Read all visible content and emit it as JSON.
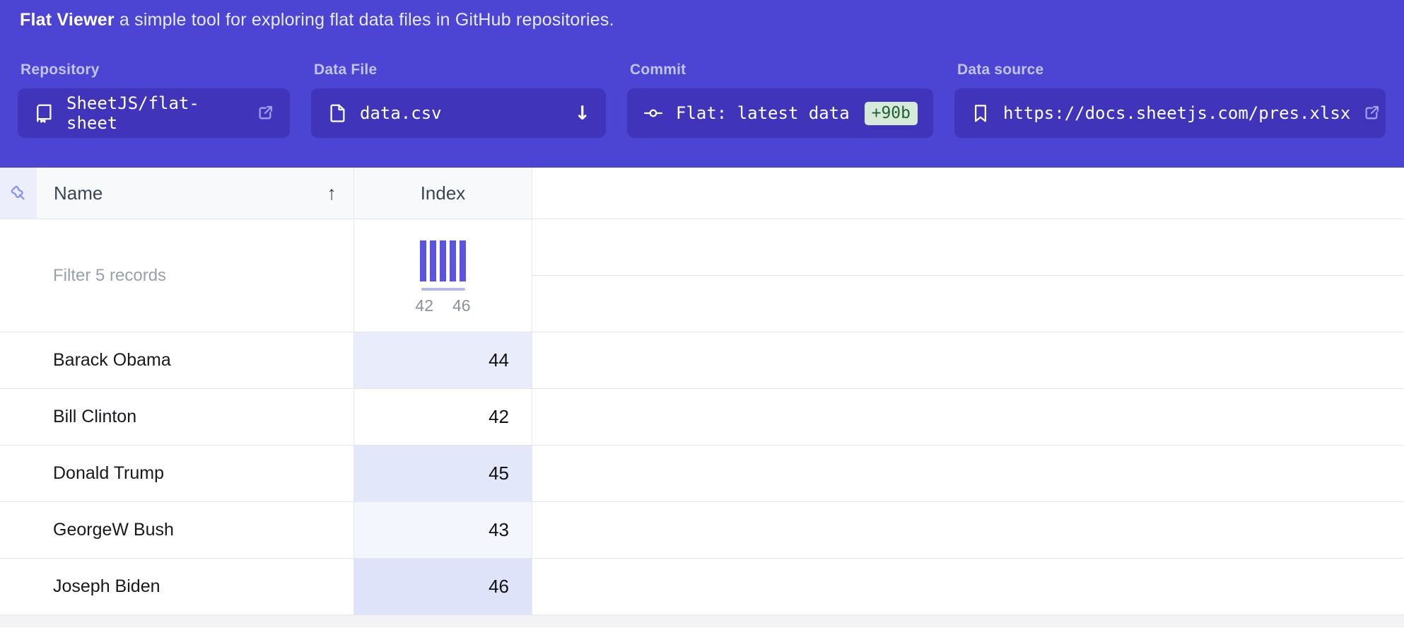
{
  "banner": {
    "bg_color": "#4c45d4",
    "button_bg_color": "#4034ba",
    "title": {
      "bold": "Flat Viewer",
      "rest": "a simple tool for exploring flat data files in GitHub repositories."
    },
    "repository": {
      "label": "Repository",
      "value": "SheetJS/flat-sheet"
    },
    "data_file": {
      "label": "Data File",
      "value": "data.csv",
      "download_indicator": "↓"
    },
    "commit": {
      "label": "Commit",
      "value": "Flat: latest data",
      "badge": "+90b",
      "badge_bg": "#d5ead8",
      "badge_text_color": "#226038"
    },
    "data_source": {
      "label": "Data source",
      "value": "https://docs.sheetjs.com/pres.xlsx"
    }
  },
  "table": {
    "columns": {
      "name": {
        "label": "Name",
        "sort_indicator": "↑"
      },
      "index": {
        "label": "Index"
      }
    },
    "filter_placeholder": "Filter 5 records",
    "record_count": "5",
    "histogram": {
      "type": "bar",
      "bins": [
        "42",
        "43",
        "44",
        "45",
        "46"
      ],
      "values": [
        1,
        1,
        1,
        1,
        1
      ],
      "min_label": "42",
      "max_label": "46",
      "bar_color": "#5a54e0"
    },
    "rows": [
      {
        "name": "Barack Obama",
        "index": "44",
        "index_bg": "#e9ecfb"
      },
      {
        "name": "Bill Clinton",
        "index": "42",
        "index_bg": "#ffffff"
      },
      {
        "name": "Donald Trump",
        "index": "45",
        "index_bg": "#e3e7fa"
      },
      {
        "name": "GeorgeW Bush",
        "index": "43",
        "index_bg": "#f4f6fd"
      },
      {
        "name": "Joseph Biden",
        "index": "46",
        "index_bg": "#dee3f9"
      }
    ]
  }
}
